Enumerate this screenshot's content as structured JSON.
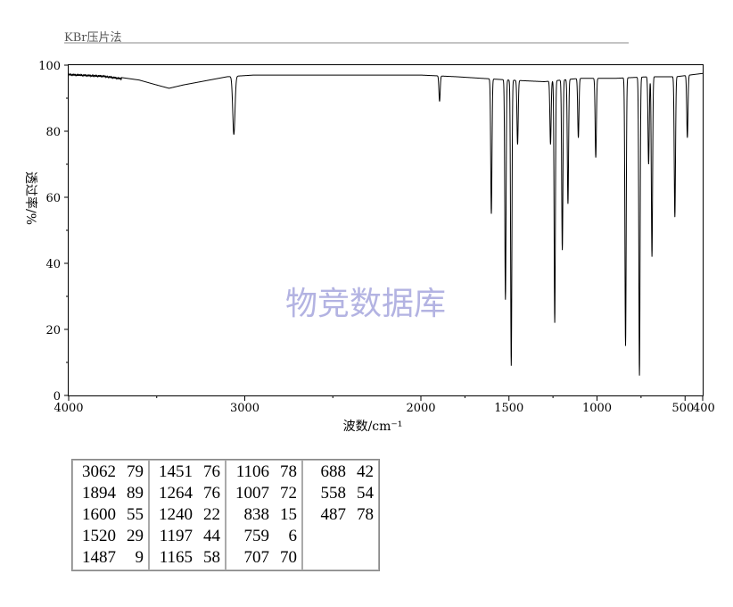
{
  "header": {
    "method": "KBr压片法"
  },
  "watermark": "物竞数据库",
  "chart_data": {
    "type": "line",
    "xlabel": "波数/cm⁻¹",
    "ylabel": "透过率/%",
    "xlim": [
      4000,
      400
    ],
    "ylim": [
      0,
      100
    ],
    "x_ticks": [
      4000,
      3000,
      2000,
      1500,
      1000,
      500,
      400
    ],
    "x_tick_labels": [
      "4000",
      "3000",
      "2000",
      "1500",
      "1000",
      "500",
      "400"
    ],
    "y_ticks": [
      0,
      20,
      40,
      60,
      80,
      100
    ],
    "y_tick_labels": [
      "0",
      "20",
      "40",
      "60",
      "80",
      "100"
    ],
    "grid": false,
    "line_color": "#000000",
    "baseline": [
      [
        4000,
        97.5
      ],
      [
        3800,
        97
      ],
      [
        3600,
        95.5
      ],
      [
        3500,
        94
      ],
      [
        3430,
        93
      ],
      [
        3350,
        94
      ],
      [
        3250,
        95
      ],
      [
        3150,
        96
      ],
      [
        3100,
        96.5
      ],
      [
        2950,
        97
      ],
      [
        2800,
        97
      ],
      [
        2500,
        97
      ],
      [
        2000,
        97
      ],
      [
        1800,
        96.5
      ],
      [
        1650,
        96
      ],
      [
        1500,
        95.5
      ],
      [
        1300,
        95
      ],
      [
        1100,
        96
      ],
      [
        900,
        96
      ],
      [
        700,
        96.5
      ],
      [
        550,
        96.5
      ],
      [
        400,
        97.5
      ]
    ],
    "peaks": [
      {
        "wavenumber": 3062,
        "transmittance": 79
      },
      {
        "wavenumber": 1894,
        "transmittance": 89
      },
      {
        "wavenumber": 1600,
        "transmittance": 55
      },
      {
        "wavenumber": 1520,
        "transmittance": 29
      },
      {
        "wavenumber": 1487,
        "transmittance": 9
      },
      {
        "wavenumber": 1451,
        "transmittance": 76
      },
      {
        "wavenumber": 1264,
        "transmittance": 76
      },
      {
        "wavenumber": 1240,
        "transmittance": 22
      },
      {
        "wavenumber": 1197,
        "transmittance": 44
      },
      {
        "wavenumber": 1165,
        "transmittance": 58
      },
      {
        "wavenumber": 1106,
        "transmittance": 78
      },
      {
        "wavenumber": 1007,
        "transmittance": 72
      },
      {
        "wavenumber": 838,
        "transmittance": 15
      },
      {
        "wavenumber": 759,
        "transmittance": 6
      },
      {
        "wavenumber": 707,
        "transmittance": 70
      },
      {
        "wavenumber": 688,
        "transmittance": 42
      },
      {
        "wavenumber": 558,
        "transmittance": 54
      },
      {
        "wavenumber": 487,
        "transmittance": 78
      }
    ]
  },
  "peak_table": {
    "columns": [
      [
        [
          "3062",
          "79"
        ],
        [
          "1894",
          "89"
        ],
        [
          "1600",
          "55"
        ],
        [
          "1520",
          "29"
        ],
        [
          "1487",
          "9"
        ]
      ],
      [
        [
          "1451",
          "76"
        ],
        [
          "1264",
          "76"
        ],
        [
          "1240",
          "22"
        ],
        [
          "1197",
          "44"
        ],
        [
          "1165",
          "58"
        ]
      ],
      [
        [
          "1106",
          "78"
        ],
        [
          "1007",
          "72"
        ],
        [
          "838",
          "15"
        ],
        [
          "759",
          "6"
        ],
        [
          "707",
          "70"
        ]
      ],
      [
        [
          "688",
          "42"
        ],
        [
          "558",
          "54"
        ],
        [
          "487",
          "78"
        ]
      ]
    ]
  }
}
